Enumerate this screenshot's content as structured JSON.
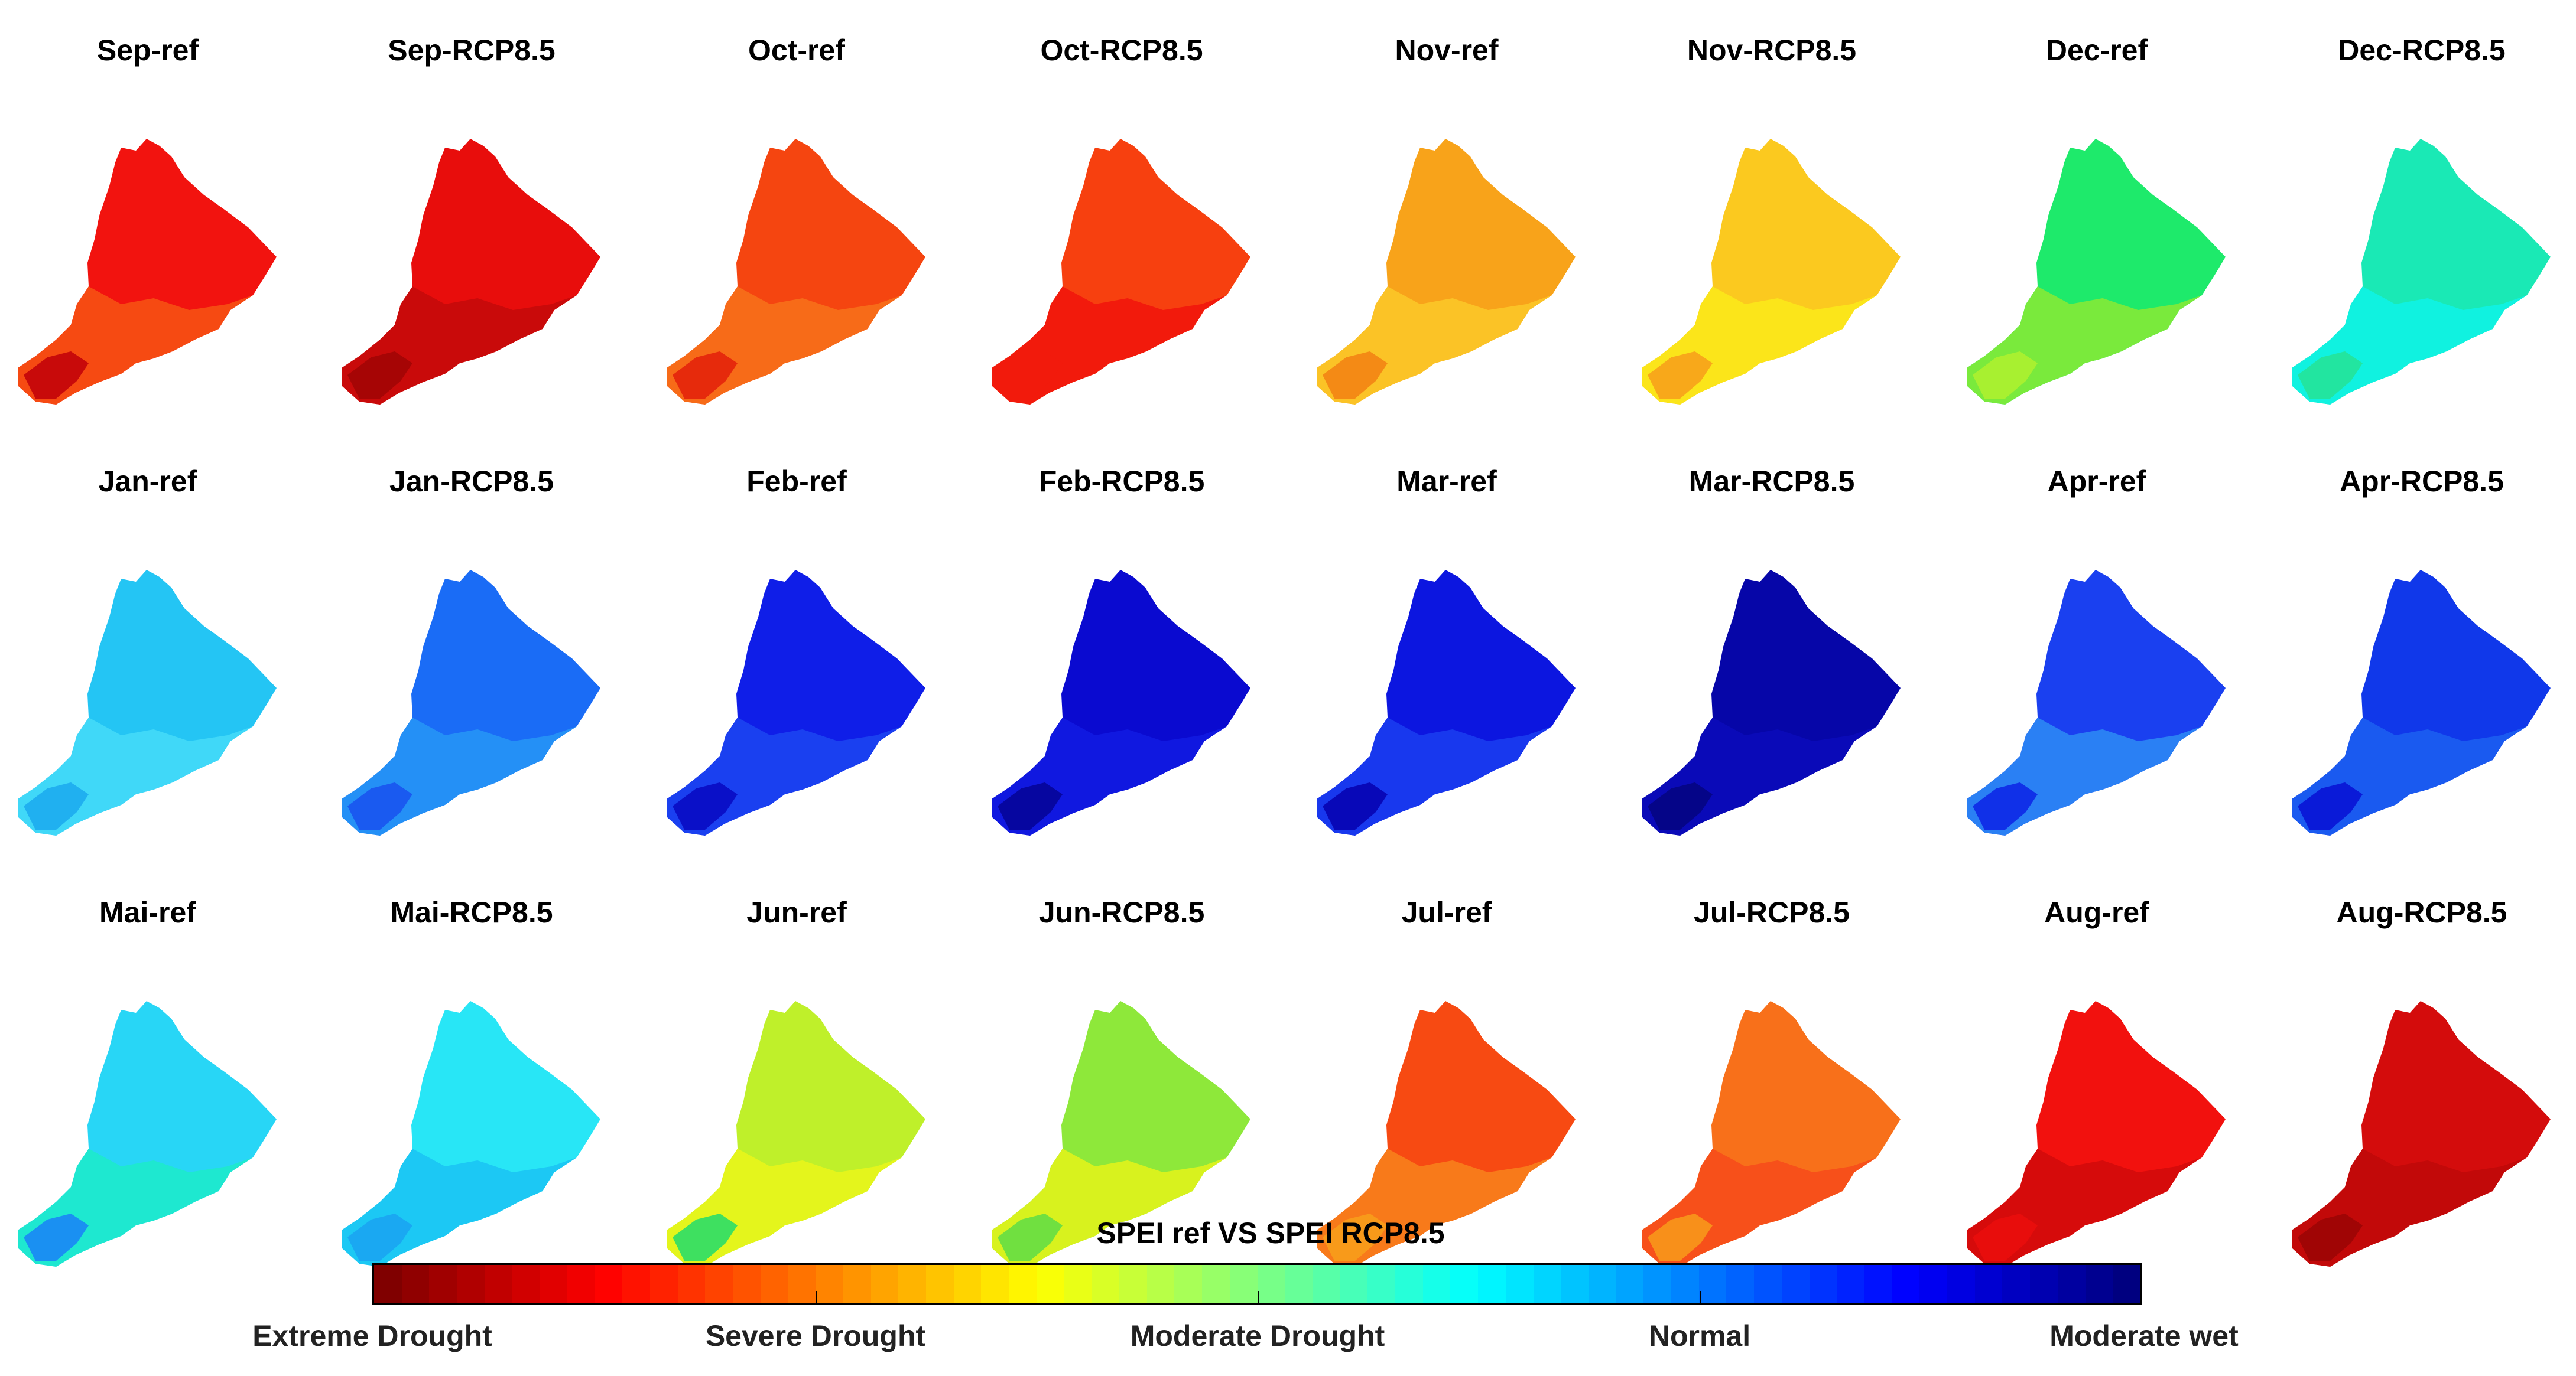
{
  "panels": [
    {
      "title": "Sep-ref",
      "color": "#f2130f",
      "accent": "#f64a12",
      "shade": "#c80a0a"
    },
    {
      "title": "Sep-RCP8.5",
      "color": "#e80d0c",
      "accent": "#c90a0a",
      "shade": "#a60505"
    },
    {
      "title": "Oct-ref",
      "color": "#f54510",
      "accent": "#f76b18",
      "shade": "#e62a0c"
    },
    {
      "title": "Oct-RCP8.5",
      "color": "#f7400f",
      "accent": "#f21a0c",
      "shade": "#f21a0c"
    },
    {
      "title": "Nov-ref",
      "color": "#f8a31a",
      "accent": "#fbc326",
      "shade": "#f48a15"
    },
    {
      "title": "Nov-RCP8.5",
      "color": "#fbc91f",
      "accent": "#fbe51a",
      "shade": "#f8a81a"
    },
    {
      "title": "Dec-ref",
      "color": "#1eea6b",
      "accent": "#7aea3c",
      "shade": "#a8f030"
    },
    {
      "title": "Dec-RCP8.5",
      "color": "#1ae9b5",
      "accent": "#10f2e0",
      "shade": "#22e5a0"
    },
    {
      "title": "Jan-ref",
      "color": "#24c5f4",
      "accent": "#40d8f8",
      "shade": "#20b0f0"
    },
    {
      "title": "Jan-RCP8.5",
      "color": "#1a6cf6",
      "accent": "#2490f6",
      "shade": "#1a5af0"
    },
    {
      "title": "Feb-ref",
      "color": "#0f1ee8",
      "accent": "#1a40f0",
      "shade": "#0a10c8"
    },
    {
      "title": "Feb-RCP8.5",
      "color": "#0a0ad0",
      "accent": "#1018e0",
      "shade": "#0606a0"
    },
    {
      "title": "Mar-ref",
      "color": "#0c16e0",
      "accent": "#1838ee",
      "shade": "#0808b8"
    },
    {
      "title": "Mar-RCP8.5",
      "color": "#0606a8",
      "accent": "#0a0ab8",
      "shade": "#050588"
    },
    {
      "title": "Apr-ref",
      "color": "#1a40f0",
      "accent": "#2a80f4",
      "shade": "#1030e8"
    },
    {
      "title": "Apr-RCP8.5",
      "color": "#1038ea",
      "accent": "#1a5af0",
      "shade": "#0a1ad8"
    },
    {
      "title": "Mai-ref",
      "color": "#28d6f6",
      "accent": "#1ee8d0",
      "shade": "#1a90f2"
    },
    {
      "title": "Mai-RCP8.5",
      "color": "#28e6f6",
      "accent": "#1cc8f4",
      "shade": "#1aa8f2"
    },
    {
      "title": "Jun-ref",
      "color": "#bff02a",
      "accent": "#e4f51c",
      "shade": "#3ee060"
    },
    {
      "title": "Jun-RCP8.5",
      "color": "#8ee83a",
      "accent": "#d8f21e",
      "shade": "#70e040"
    },
    {
      "title": "Jul-ref",
      "color": "#f74a12",
      "accent": "#f87a1a",
      "shade": "#f89a1a"
    },
    {
      "title": "Jul-RCP8.5",
      "color": "#f8701a",
      "accent": "#f7501a",
      "shade": "#f8901a"
    },
    {
      "title": "Aug-ref",
      "color": "#f2110e",
      "accent": "#d60b0b",
      "shade": "#e80d0c"
    },
    {
      "title": "Aug-RCP8.5",
      "color": "#d40c0c",
      "accent": "#c20909",
      "shade": "#a00505"
    }
  ],
  "colorbar": {
    "title": "SPEI ref VS SPEI RCP8.5",
    "labels": [
      "Extreme Drought",
      "Severe Drought",
      "Moderate Drought",
      "Normal",
      "Moderate wet"
    ],
    "colormap": "jet-reversed"
  }
}
